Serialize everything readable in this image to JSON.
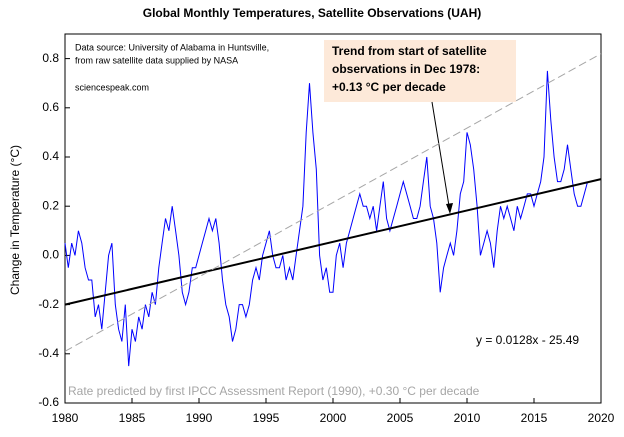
{
  "chart_data": {
    "type": "line",
    "title": "Global Monthly Temperatures, Satellite Observations (UAH)",
    "ylabel": "Change in Temperature  (°C)",
    "annotations": {
      "source": [
        "Data source:  University of Alabama in Huntsville,",
        "from raw satellite data supplied by NASA"
      ],
      "site": "sciencespeak.com",
      "trend_box": [
        "Trend from start of satellite",
        "observations in Dec 1978:",
        "+0.13  °C per decade"
      ],
      "equation": "y = 0.0128x - 25.49",
      "ipcc": "Rate predicted by first IPCC Assessment Report (1990), +0.30  °C per decade"
    },
    "x": [
      1980,
      1980.25,
      1980.5,
      1980.75,
      1981,
      1981.25,
      1981.5,
      1981.75,
      1982,
      1982.25,
      1982.5,
      1982.75,
      1983,
      1983.25,
      1983.5,
      1983.75,
      1984,
      1984.25,
      1984.5,
      1984.75,
      1985,
      1985.25,
      1985.5,
      1985.75,
      1986,
      1986.25,
      1986.5,
      1986.75,
      1987,
      1987.25,
      1987.5,
      1987.75,
      1988,
      1988.25,
      1988.5,
      1988.75,
      1989,
      1989.25,
      1989.5,
      1989.75,
      1990,
      1990.25,
      1990.5,
      1990.75,
      1991,
      1991.25,
      1991.5,
      1991.75,
      1992,
      1992.25,
      1992.5,
      1992.75,
      1993,
      1993.25,
      1993.5,
      1993.75,
      1994,
      1994.25,
      1994.5,
      1994.75,
      1995,
      1995.25,
      1995.5,
      1995.75,
      1996,
      1996.25,
      1996.5,
      1996.75,
      1997,
      1997.25,
      1997.5,
      1997.75,
      1998,
      1998.25,
      1998.5,
      1998.75,
      1999,
      1999.25,
      1999.5,
      1999.75,
      2000,
      2000.25,
      2000.5,
      2000.75,
      2001,
      2001.25,
      2001.5,
      2001.75,
      2002,
      2002.25,
      2002.5,
      2002.75,
      2003,
      2003.25,
      2003.5,
      2003.75,
      2004,
      2004.25,
      2004.5,
      2004.75,
      2005,
      2005.25,
      2005.5,
      2005.75,
      2006,
      2006.25,
      2006.5,
      2006.75,
      2007,
      2007.25,
      2007.5,
      2007.75,
      2008,
      2008.25,
      2008.5,
      2008.75,
      2009,
      2009.25,
      2009.5,
      2009.75,
      2010,
      2010.25,
      2010.5,
      2010.75,
      2011,
      2011.25,
      2011.5,
      2011.75,
      2012,
      2012.25,
      2012.5,
      2012.75,
      2013,
      2013.25,
      2013.5,
      2013.75,
      2014,
      2014.25,
      2014.5,
      2014.75,
      2015,
      2015.25,
      2015.5,
      2015.75,
      2016,
      2016.25,
      2016.5,
      2016.75,
      2017,
      2017.25,
      2017.5,
      2017.75,
      2018,
      2018.25,
      2018.5,
      2018.75,
      2019
    ],
    "series": [
      {
        "color": "#0000ff",
        "values": [
          0.05,
          -0.05,
          0.05,
          0.0,
          0.1,
          0.05,
          -0.05,
          -0.1,
          -0.1,
          -0.25,
          -0.2,
          -0.3,
          -0.15,
          0.0,
          0.05,
          -0.2,
          -0.3,
          -0.35,
          -0.2,
          -0.45,
          -0.3,
          -0.35,
          -0.25,
          -0.3,
          -0.2,
          -0.25,
          -0.15,
          -0.2,
          -0.05,
          0.05,
          0.15,
          0.1,
          0.2,
          0.1,
          0.0,
          -0.15,
          -0.2,
          -0.15,
          -0.05,
          -0.05,
          0.0,
          0.05,
          0.1,
          0.15,
          0.1,
          0.15,
          0.05,
          -0.1,
          -0.2,
          -0.25,
          -0.35,
          -0.3,
          -0.2,
          -0.2,
          -0.25,
          -0.2,
          -0.1,
          -0.05,
          -0.1,
          0.0,
          0.05,
          0.1,
          0.0,
          -0.05,
          -0.05,
          0.0,
          -0.1,
          -0.05,
          -0.1,
          0.0,
          0.1,
          0.2,
          0.5,
          0.7,
          0.5,
          0.35,
          0.0,
          -0.1,
          -0.05,
          -0.15,
          -0.15,
          0.0,
          0.05,
          -0.05,
          0.05,
          0.1,
          0.15,
          0.2,
          0.25,
          0.2,
          0.2,
          0.15,
          0.2,
          0.1,
          0.2,
          0.3,
          0.15,
          0.1,
          0.15,
          0.2,
          0.25,
          0.3,
          0.25,
          0.2,
          0.15,
          0.15,
          0.2,
          0.3,
          0.4,
          0.2,
          0.15,
          0.05,
          -0.15,
          -0.05,
          0.0,
          0.05,
          0.0,
          0.1,
          0.25,
          0.3,
          0.5,
          0.45,
          0.35,
          0.2,
          0.0,
          0.05,
          0.1,
          0.05,
          -0.05,
          0.1,
          0.2,
          0.15,
          0.2,
          0.15,
          0.1,
          0.2,
          0.15,
          0.2,
          0.25,
          0.25,
          0.2,
          0.25,
          0.3,
          0.4,
          0.75,
          0.55,
          0.4,
          0.3,
          0.3,
          0.35,
          0.45,
          0.35,
          0.25,
          0.2,
          0.2,
          0.25,
          0.3
        ]
      }
    ],
    "reference_lines": [
      {
        "x": [
          1980,
          2020
        ],
        "values": [
          -0.2,
          0.31
        ],
        "color": "#000000",
        "dash": false
      },
      {
        "x": [
          1980,
          2020
        ],
        "values": [
          -0.39,
          0.82
        ],
        "color": "#a6a6a6",
        "dash": true
      }
    ],
    "xlim": [
      1980,
      2020
    ],
    "xticks": [
      1980,
      1985,
      1990,
      1995,
      2000,
      2005,
      2010,
      2015,
      2020
    ],
    "ylim": [
      -0.6,
      0.9
    ],
    "yticks": [
      -0.6,
      -0.4,
      -0.2,
      {
        "value": 0,
        "label": "0.0"
      },
      0.2,
      0.4,
      0.6,
      0.8
    ]
  }
}
